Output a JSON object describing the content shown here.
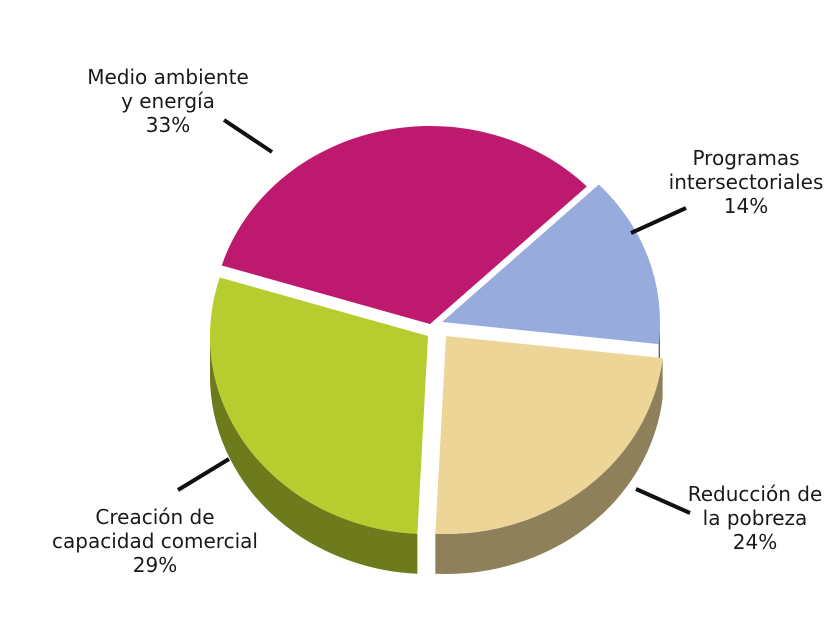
{
  "chart_data": {
    "type": "pie",
    "slices": [
      {
        "label_lines": [
          "Programas",
          "intersectoriales"
        ],
        "pct_text": "14%",
        "value": 14,
        "color": "#97acdc"
      },
      {
        "label_lines": [
          "Reducción de",
          "la pobreza"
        ],
        "pct_text": "24%",
        "value": 24,
        "color": "#ecd597"
      },
      {
        "label_lines": [
          "Creación de",
          "capacidad comercial"
        ],
        "pct_text": "29%",
        "value": 29,
        "color": "#b7cd2f"
      },
      {
        "label_lines": [
          "Medio ambiente",
          "y energía"
        ],
        "pct_text": "33%",
        "value": 33,
        "color": "#bd1a6f"
      }
    ],
    "style": "3d-exploded",
    "legend": "none"
  }
}
